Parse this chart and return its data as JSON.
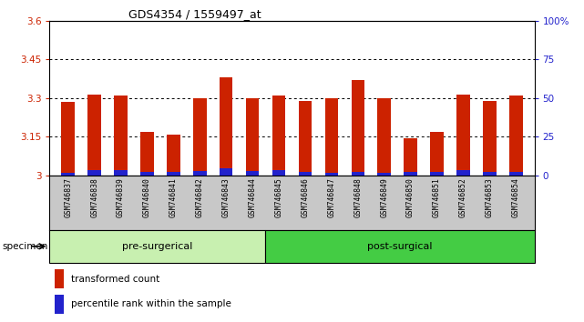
{
  "title": "GDS4354 / 1559497_at",
  "samples": [
    "GSM746837",
    "GSM746838",
    "GSM746839",
    "GSM746840",
    "GSM746841",
    "GSM746842",
    "GSM746843",
    "GSM746844",
    "GSM746845",
    "GSM746846",
    "GSM746847",
    "GSM746848",
    "GSM746849",
    "GSM746850",
    "GSM746851",
    "GSM746852",
    "GSM746853",
    "GSM746854"
  ],
  "red_values": [
    3.285,
    3.315,
    3.31,
    3.17,
    3.16,
    3.3,
    3.38,
    3.3,
    3.31,
    3.29,
    3.3,
    3.37,
    3.3,
    3.145,
    3.17,
    3.315,
    3.29,
    3.31
  ],
  "blue_values": [
    2.0,
    3.5,
    3.5,
    2.5,
    2.5,
    3.0,
    4.5,
    3.0,
    3.5,
    2.5,
    2.0,
    2.5,
    2.0,
    2.5,
    2.5,
    3.5,
    2.5,
    2.5
  ],
  "pre_surgical_count": 8,
  "post_surgical_count": 10,
  "pre_label": "pre-surgerical",
  "post_label": "post-surgical",
  "ylim_left": [
    3.0,
    3.6
  ],
  "ylim_right": [
    0,
    100
  ],
  "yticks_left": [
    3.0,
    3.15,
    3.3,
    3.45,
    3.6
  ],
  "yticks_left_labels": [
    "3",
    "3.15",
    "3.3",
    "3.45",
    "3.6"
  ],
  "yticks_right": [
    0,
    25,
    50,
    75,
    100
  ],
  "yticks_right_labels": [
    "0",
    "25",
    "50",
    "75",
    "100%"
  ],
  "gridlines_at": [
    3.15,
    3.3,
    3.45
  ],
  "bar_color_red": "#cc2200",
  "bar_color_blue": "#2222cc",
  "pre_bg": "#c8f0b0",
  "post_bg": "#44cc44",
  "xlbl_bg": "#c8c8c8",
  "legend_red": "transformed count",
  "legend_blue": "percentile rank within the sample",
  "base_value": 3.0,
  "bar_width": 0.5
}
